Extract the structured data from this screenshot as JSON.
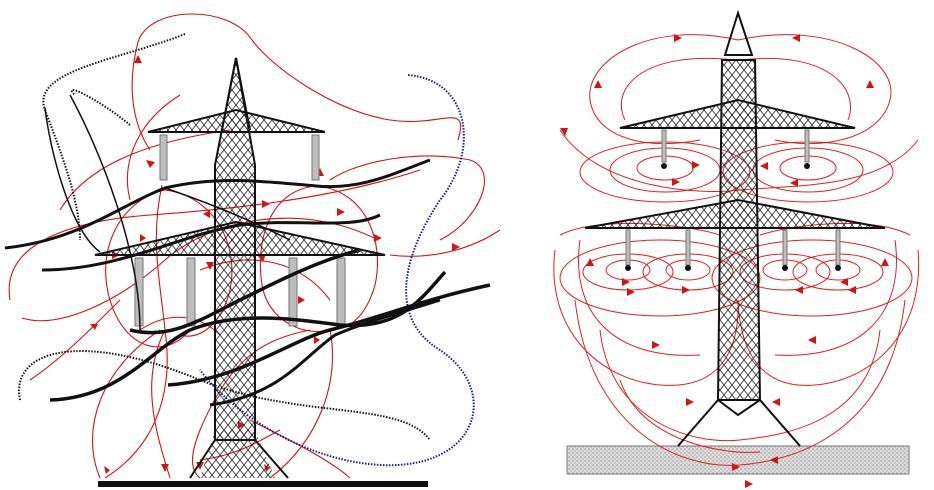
{
  "figure": {
    "panels": [
      {
        "id": "left",
        "content": "magnetic-field-lines-around-tower-with-conductors"
      },
      {
        "id": "right",
        "content": "electric-field-lines-around-tower"
      }
    ],
    "colors": {
      "field_line": "#d21414",
      "conductor": "#111111",
      "shield_wire": "#1a1a8c",
      "insulator": "#bdbdbd",
      "ground": "#d9d9d9"
    }
  }
}
